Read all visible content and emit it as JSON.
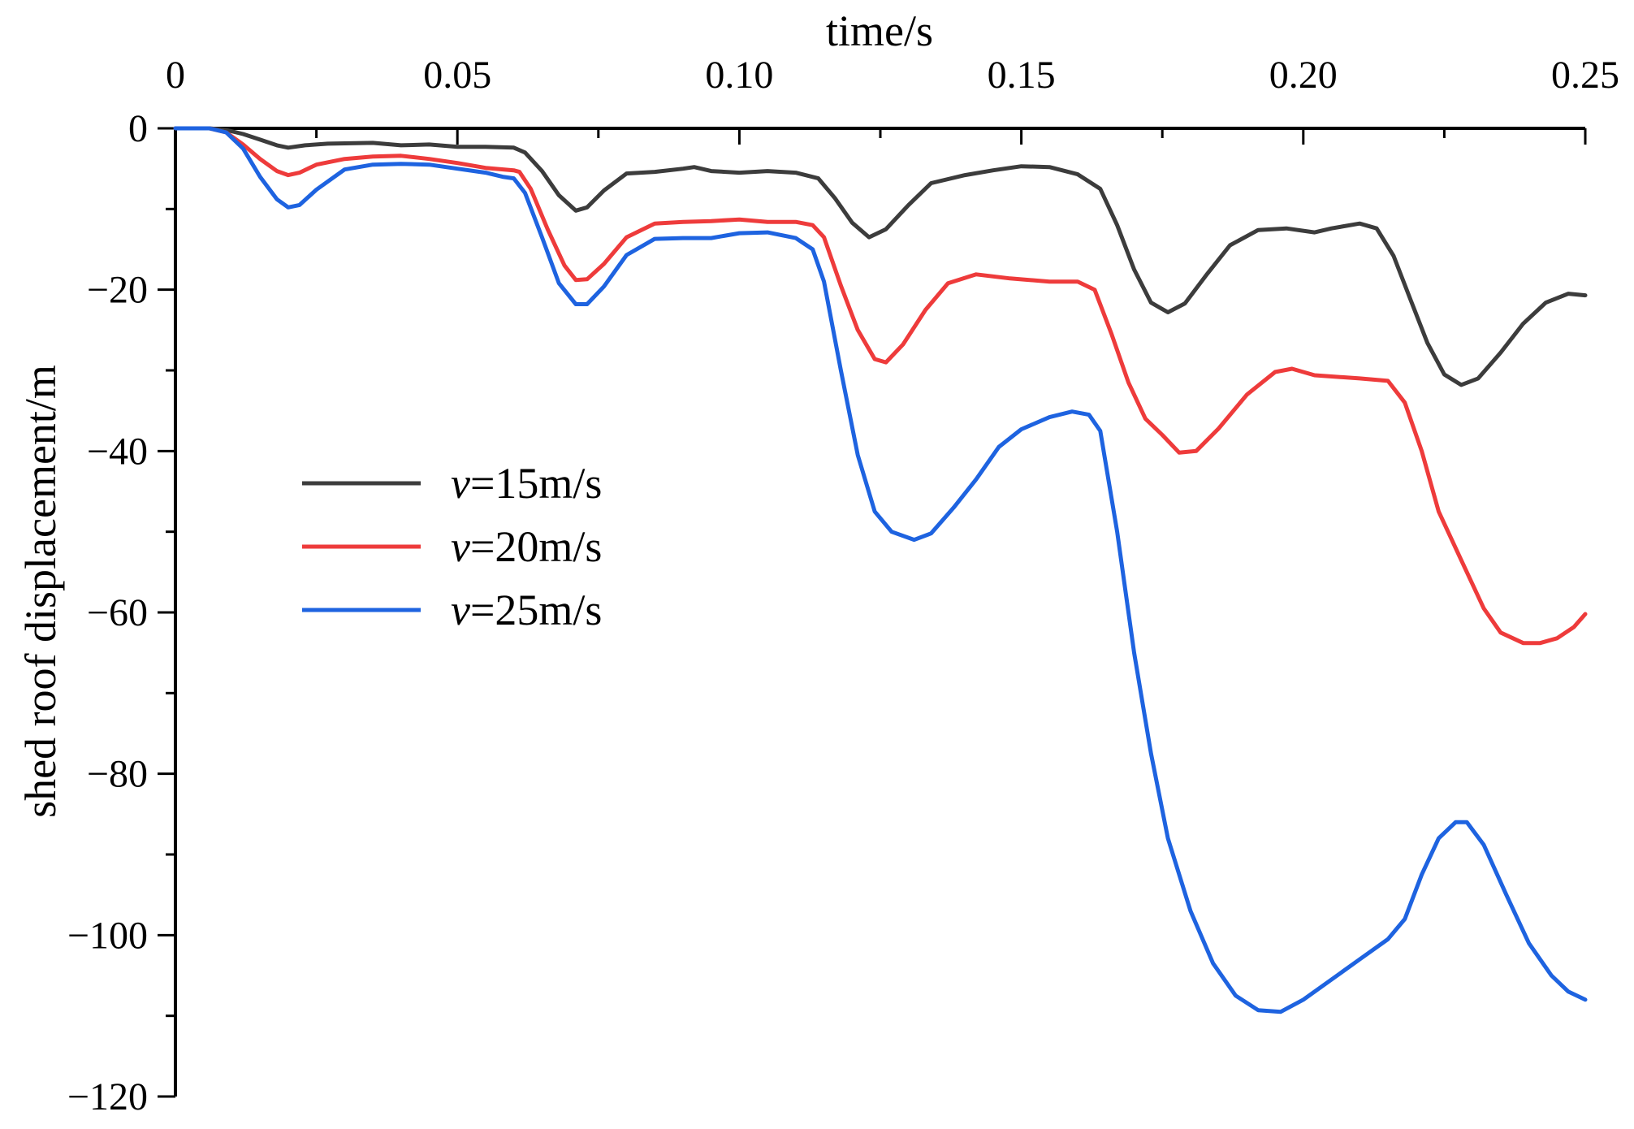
{
  "chart_data": {
    "type": "line",
    "title": "",
    "xlabel": "time/s",
    "ylabel": "shed roof displacement/m",
    "xlim": [
      0,
      0.25
    ],
    "ylim": [
      -120,
      0
    ],
    "x_axis_position": "top",
    "x_ticks": [
      {
        "value": 0,
        "label": "0"
      },
      {
        "value": 0.05,
        "label": "0.05"
      },
      {
        "value": 0.1,
        "label": "0.10"
      },
      {
        "value": 0.15,
        "label": "0.15"
      },
      {
        "value": 0.2,
        "label": "0.20"
      },
      {
        "value": 0.25,
        "label": "0.25"
      }
    ],
    "x_minor_ticks": [
      0.025,
      0.075,
      0.125,
      0.175,
      0.225
    ],
    "y_ticks": [
      {
        "value": 0,
        "label": "0"
      },
      {
        "value": -20,
        "label": "−20"
      },
      {
        "value": -40,
        "label": "−40"
      },
      {
        "value": -60,
        "label": "−60"
      },
      {
        "value": -80,
        "label": "−80"
      },
      {
        "value": -100,
        "label": "−100"
      },
      {
        "value": -120,
        "label": "−120"
      }
    ],
    "y_minor_ticks": [
      -10,
      -30,
      -50,
      -70,
      -90,
      -110
    ],
    "grid": false,
    "legend_position": "middle-left",
    "series": [
      {
        "name": "v=15m/s",
        "legend_var": "v",
        "legend_rest": "=15m/s",
        "color": "#3c3c3c",
        "points": [
          [
            0,
            0
          ],
          [
            0.006,
            0
          ],
          [
            0.009,
            -0.2
          ],
          [
            0.012,
            -0.7
          ],
          [
            0.015,
            -1.4
          ],
          [
            0.018,
            -2.1
          ],
          [
            0.02,
            -2.4
          ],
          [
            0.023,
            -2.1
          ],
          [
            0.027,
            -1.9
          ],
          [
            0.035,
            -1.8
          ],
          [
            0.04,
            -2.1
          ],
          [
            0.045,
            -2.0
          ],
          [
            0.05,
            -2.3
          ],
          [
            0.055,
            -2.3
          ],
          [
            0.06,
            -2.4
          ],
          [
            0.062,
            -3.0
          ],
          [
            0.065,
            -5.3
          ],
          [
            0.068,
            -8.3
          ],
          [
            0.071,
            -10.2
          ],
          [
            0.073,
            -9.8
          ],
          [
            0.076,
            -7.7
          ],
          [
            0.08,
            -5.6
          ],
          [
            0.085,
            -5.4
          ],
          [
            0.09,
            -5.0
          ],
          [
            0.092,
            -4.8
          ],
          [
            0.095,
            -5.3
          ],
          [
            0.1,
            -5.5
          ],
          [
            0.105,
            -5.3
          ],
          [
            0.11,
            -5.5
          ],
          [
            0.114,
            -6.2
          ],
          [
            0.117,
            -8.7
          ],
          [
            0.12,
            -11.7
          ],
          [
            0.123,
            -13.5
          ],
          [
            0.126,
            -12.5
          ],
          [
            0.13,
            -9.5
          ],
          [
            0.134,
            -6.8
          ],
          [
            0.14,
            -5.8
          ],
          [
            0.145,
            -5.2
          ],
          [
            0.15,
            -4.7
          ],
          [
            0.155,
            -4.8
          ],
          [
            0.16,
            -5.7
          ],
          [
            0.164,
            -7.5
          ],
          [
            0.167,
            -12.0
          ],
          [
            0.17,
            -17.5
          ],
          [
            0.173,
            -21.6
          ],
          [
            0.176,
            -22.8
          ],
          [
            0.179,
            -21.7
          ],
          [
            0.183,
            -18.0
          ],
          [
            0.187,
            -14.5
          ],
          [
            0.192,
            -12.6
          ],
          [
            0.197,
            -12.4
          ],
          [
            0.202,
            -12.9
          ],
          [
            0.205,
            -12.4
          ],
          [
            0.21,
            -11.8
          ],
          [
            0.213,
            -12.4
          ],
          [
            0.216,
            -15.8
          ],
          [
            0.219,
            -21.2
          ],
          [
            0.222,
            -26.6
          ],
          [
            0.225,
            -30.5
          ],
          [
            0.228,
            -31.8
          ],
          [
            0.231,
            -31.0
          ],
          [
            0.235,
            -27.8
          ],
          [
            0.239,
            -24.2
          ],
          [
            0.243,
            -21.6
          ],
          [
            0.247,
            -20.5
          ],
          [
            0.25,
            -20.7
          ]
        ]
      },
      {
        "name": "v=20m/s",
        "legend_var": "v",
        "legend_rest": "=20m/s",
        "color": "#ee3b3b",
        "points": [
          [
            0,
            0
          ],
          [
            0.006,
            0
          ],
          [
            0.009,
            -0.5
          ],
          [
            0.012,
            -2.0
          ],
          [
            0.015,
            -3.8
          ],
          [
            0.018,
            -5.3
          ],
          [
            0.02,
            -5.8
          ],
          [
            0.022,
            -5.5
          ],
          [
            0.025,
            -4.5
          ],
          [
            0.03,
            -3.8
          ],
          [
            0.035,
            -3.5
          ],
          [
            0.04,
            -3.4
          ],
          [
            0.045,
            -3.8
          ],
          [
            0.05,
            -4.3
          ],
          [
            0.055,
            -4.9
          ],
          [
            0.06,
            -5.2
          ],
          [
            0.061,
            -5.4
          ],
          [
            0.063,
            -7.5
          ],
          [
            0.066,
            -12.5
          ],
          [
            0.069,
            -17.0
          ],
          [
            0.071,
            -18.8
          ],
          [
            0.073,
            -18.7
          ],
          [
            0.076,
            -16.8
          ],
          [
            0.08,
            -13.5
          ],
          [
            0.085,
            -11.8
          ],
          [
            0.09,
            -11.6
          ],
          [
            0.095,
            -11.5
          ],
          [
            0.1,
            -11.3
          ],
          [
            0.105,
            -11.6
          ],
          [
            0.11,
            -11.6
          ],
          [
            0.113,
            -12.0
          ],
          [
            0.115,
            -13.5
          ],
          [
            0.118,
            -19.5
          ],
          [
            0.121,
            -25.0
          ],
          [
            0.124,
            -28.6
          ],
          [
            0.126,
            -29.0
          ],
          [
            0.129,
            -26.8
          ],
          [
            0.133,
            -22.5
          ],
          [
            0.137,
            -19.2
          ],
          [
            0.142,
            -18.1
          ],
          [
            0.148,
            -18.6
          ],
          [
            0.155,
            -19.0
          ],
          [
            0.16,
            -19.0
          ],
          [
            0.163,
            -20.0
          ],
          [
            0.166,
            -25.5
          ],
          [
            0.169,
            -31.5
          ],
          [
            0.172,
            -36.0
          ],
          [
            0.175,
            -38.0
          ],
          [
            0.178,
            -40.2
          ],
          [
            0.181,
            -40.0
          ],
          [
            0.185,
            -37.2
          ],
          [
            0.19,
            -33.0
          ],
          [
            0.195,
            -30.2
          ],
          [
            0.198,
            -29.8
          ],
          [
            0.202,
            -30.6
          ],
          [
            0.21,
            -31.0
          ],
          [
            0.215,
            -31.3
          ],
          [
            0.218,
            -34.0
          ],
          [
            0.221,
            -40.0
          ],
          [
            0.224,
            -47.5
          ],
          [
            0.228,
            -53.5
          ],
          [
            0.232,
            -59.5
          ],
          [
            0.235,
            -62.5
          ],
          [
            0.239,
            -63.8
          ],
          [
            0.242,
            -63.8
          ],
          [
            0.245,
            -63.2
          ],
          [
            0.248,
            -61.8
          ],
          [
            0.25,
            -60.2
          ]
        ]
      },
      {
        "name": "v=25m/s",
        "legend_var": "v",
        "legend_rest": "=25m/s",
        "color": "#1e63e0",
        "points": [
          [
            0,
            0
          ],
          [
            0.006,
            0
          ],
          [
            0.009,
            -0.5
          ],
          [
            0.012,
            -2.5
          ],
          [
            0.015,
            -6.0
          ],
          [
            0.018,
            -8.8
          ],
          [
            0.02,
            -9.8
          ],
          [
            0.022,
            -9.5
          ],
          [
            0.025,
            -7.6
          ],
          [
            0.03,
            -5.1
          ],
          [
            0.035,
            -4.5
          ],
          [
            0.04,
            -4.4
          ],
          [
            0.045,
            -4.5
          ],
          [
            0.05,
            -5.0
          ],
          [
            0.055,
            -5.5
          ],
          [
            0.058,
            -6.0
          ],
          [
            0.06,
            -6.2
          ],
          [
            0.062,
            -8.0
          ],
          [
            0.065,
            -13.5
          ],
          [
            0.068,
            -19.2
          ],
          [
            0.071,
            -21.8
          ],
          [
            0.073,
            -21.8
          ],
          [
            0.076,
            -19.6
          ],
          [
            0.08,
            -15.7
          ],
          [
            0.085,
            -13.7
          ],
          [
            0.09,
            -13.6
          ],
          [
            0.095,
            -13.6
          ],
          [
            0.1,
            -13.0
          ],
          [
            0.105,
            -12.9
          ],
          [
            0.11,
            -13.6
          ],
          [
            0.113,
            -15.0
          ],
          [
            0.115,
            -19.0
          ],
          [
            0.118,
            -30.0
          ],
          [
            0.121,
            -40.5
          ],
          [
            0.124,
            -47.5
          ],
          [
            0.127,
            -50.0
          ],
          [
            0.131,
            -51.0
          ],
          [
            0.134,
            -50.2
          ],
          [
            0.138,
            -47.0
          ],
          [
            0.142,
            -43.5
          ],
          [
            0.146,
            -39.5
          ],
          [
            0.15,
            -37.3
          ],
          [
            0.155,
            -35.8
          ],
          [
            0.159,
            -35.1
          ],
          [
            0.162,
            -35.5
          ],
          [
            0.164,
            -37.5
          ],
          [
            0.167,
            -50.0
          ],
          [
            0.17,
            -65.0
          ],
          [
            0.173,
            -77.5
          ],
          [
            0.176,
            -88.0
          ],
          [
            0.18,
            -97.0
          ],
          [
            0.184,
            -103.5
          ],
          [
            0.188,
            -107.5
          ],
          [
            0.192,
            -109.3
          ],
          [
            0.196,
            -109.5
          ],
          [
            0.2,
            -108.0
          ],
          [
            0.205,
            -105.5
          ],
          [
            0.21,
            -103.0
          ],
          [
            0.215,
            -100.5
          ],
          [
            0.218,
            -98.0
          ],
          [
            0.221,
            -92.5
          ],
          [
            0.224,
            -88.0
          ],
          [
            0.227,
            -86.0
          ],
          [
            0.229,
            -86.0
          ],
          [
            0.232,
            -88.8
          ],
          [
            0.236,
            -95.0
          ],
          [
            0.24,
            -101.0
          ],
          [
            0.244,
            -105.0
          ],
          [
            0.247,
            -107.0
          ],
          [
            0.25,
            -108.0
          ]
        ]
      }
    ]
  }
}
